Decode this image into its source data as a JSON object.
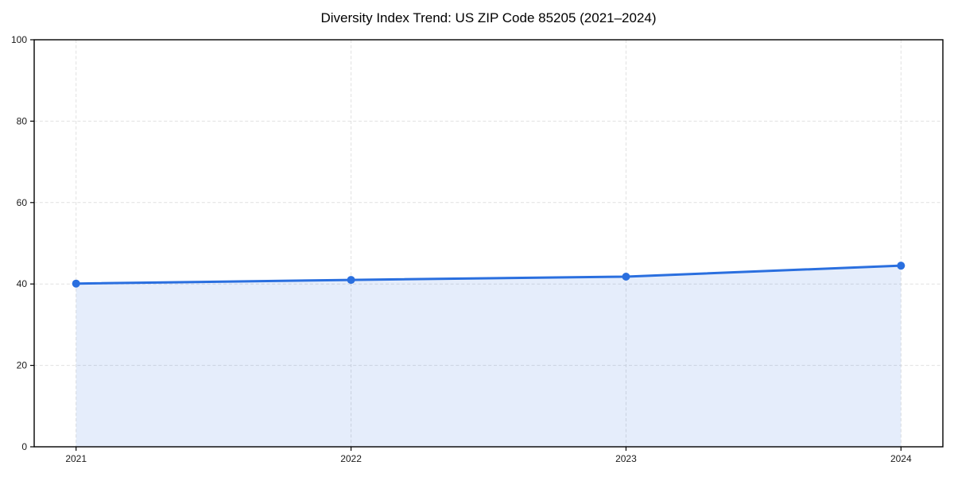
{
  "page": {
    "background_color": "#ffffff"
  },
  "chart_data": {
    "type": "area",
    "title": "Diversity Index Trend: US ZIP Code 85205 (2021–2024)",
    "x": [
      2021,
      2022,
      2023,
      2024
    ],
    "xtick_labels": [
      "2021",
      "2022",
      "2023",
      "2024"
    ],
    "values": [
      40.1,
      41.0,
      41.8,
      44.5
    ],
    "series_name": "Diversity Index",
    "ylim": [
      0,
      100
    ],
    "yticks": [
      0,
      20,
      40,
      60,
      80,
      100
    ],
    "ytick_labels": [
      "0",
      "20",
      "40",
      "60",
      "80",
      "100"
    ],
    "xlabel": "",
    "ylabel": "",
    "grid": "dashed",
    "legend": "none",
    "marker": "circle",
    "line_color": "#2a6fdf",
    "marker_color": "#2a6fdf",
    "fill_color": "#2a6fdf",
    "fill_opacity": 0.12,
    "grid_color": "#e0e0e0",
    "axis_color": "#000000",
    "tick_label_color": "#1a1a1a",
    "title_color": "#000000"
  }
}
